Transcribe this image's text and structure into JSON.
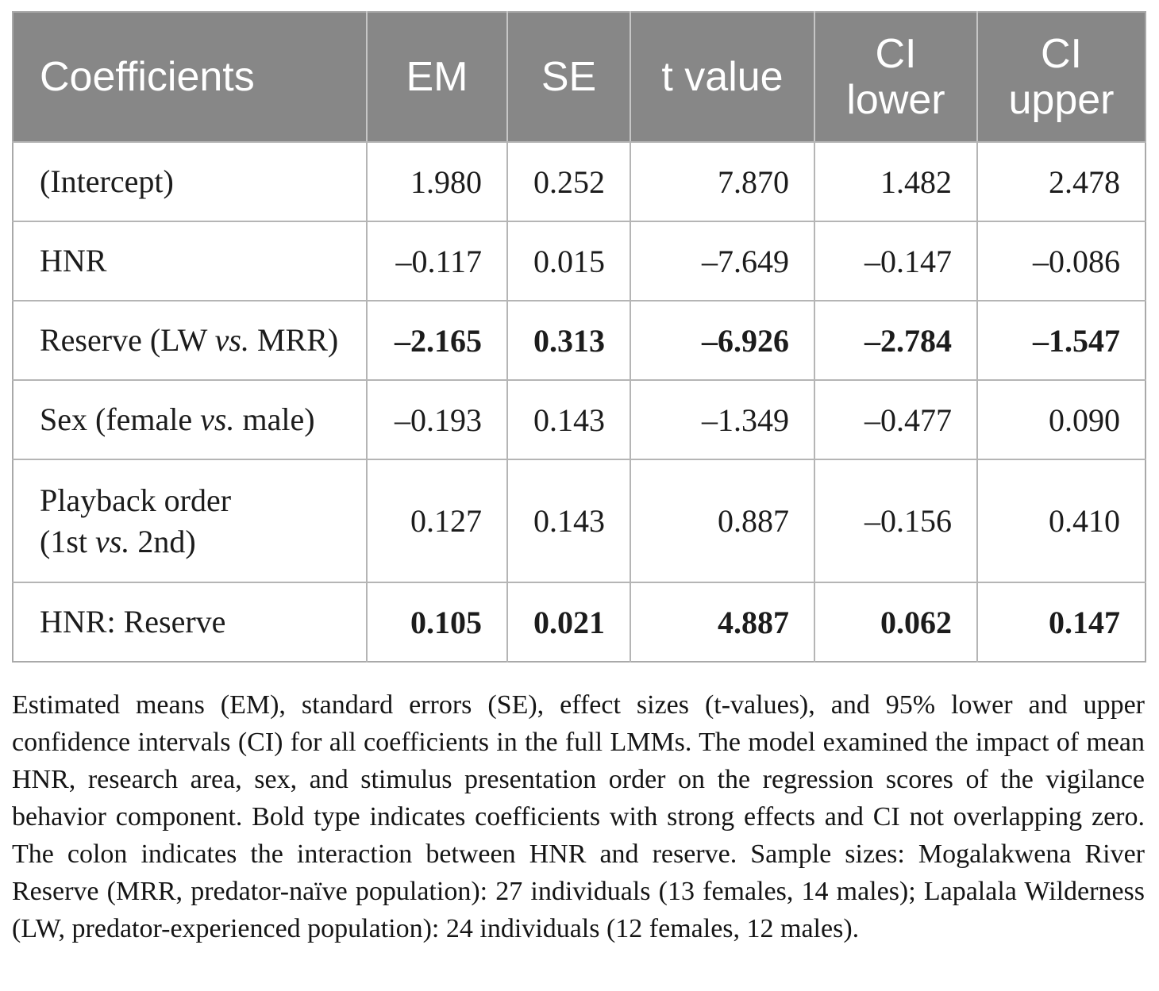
{
  "colors": {
    "header_bg": "#878787",
    "header_text": "#ffffff",
    "body_text": "#1c1c1c",
    "grid_line": "#b5b5b5"
  },
  "table": {
    "headers": [
      "Coefficients",
      "EM",
      "SE",
      "t value",
      "CI lower",
      "CI upper"
    ],
    "rows": [
      {
        "bold": false,
        "label": {
          "line1_pre": "(Intercept)",
          "line1_vs": "",
          "line1_post": ""
        },
        "em": "1.980",
        "se": "0.252",
        "t_value": "7.870",
        "ci_lower": "1.482",
        "ci_upper": "2.478"
      },
      {
        "bold": false,
        "label": {
          "line1_pre": "HNR",
          "line1_vs": "",
          "line1_post": ""
        },
        "em": "–0.117",
        "se": "0.015",
        "t_value": "–7.649",
        "ci_lower": "–0.147",
        "ci_upper": "–0.086"
      },
      {
        "bold": true,
        "label": {
          "line1_pre": "Reserve (LW ",
          "line1_vs": "vs.",
          "line1_post": " MRR)"
        },
        "em": "–2.165",
        "se": "0.313",
        "t_value": "–6.926",
        "ci_lower": "–2.784",
        "ci_upper": "–1.547"
      },
      {
        "bold": false,
        "label": {
          "line1_pre": "Sex (female ",
          "line1_vs": "vs.",
          "line1_post": " male)"
        },
        "em": "–0.193",
        "se": "0.143",
        "t_value": "–1.349",
        "ci_lower": "–0.477",
        "ci_upper": "0.090"
      },
      {
        "bold": false,
        "label": {
          "line1_pre": "Playback order",
          "line1_vs": "",
          "line1_post": "",
          "line2_pre": "(1st ",
          "line2_vs": "vs.",
          "line2_post": " 2nd)"
        },
        "em": "0.127",
        "se": "0.143",
        "t_value": "0.887",
        "ci_lower": "–0.156",
        "ci_upper": "0.410"
      },
      {
        "bold": true,
        "label": {
          "line1_pre": "HNR: Reserve",
          "line1_vs": "",
          "line1_post": ""
        },
        "em": "0.105",
        "se": "0.021",
        "t_value": "4.887",
        "ci_lower": "0.062",
        "ci_upper": "0.147"
      }
    ]
  },
  "caption": {
    "text": "Estimated means (EM), standard errors (SE), effect sizes (t-values), and 95% lower and upper confidence intervals (CI) for all coefficients in the full LMMs. The model examined the impact of mean HNR, research area, sex, and stimulus presentation order on the regression scores of the vigilance behavior component. Bold type indicates coefficients with strong effects and CI not overlapping zero. The colon indicates the interaction between HNR and reserve. Sample sizes: Mogalakwena River Reserve (MRR, predator-naïve population): 27 individuals (13 females, 14 males); Lapalala Wilderness (LW, predator-experienced population): 24 individuals (12 females, 12 males)."
  }
}
